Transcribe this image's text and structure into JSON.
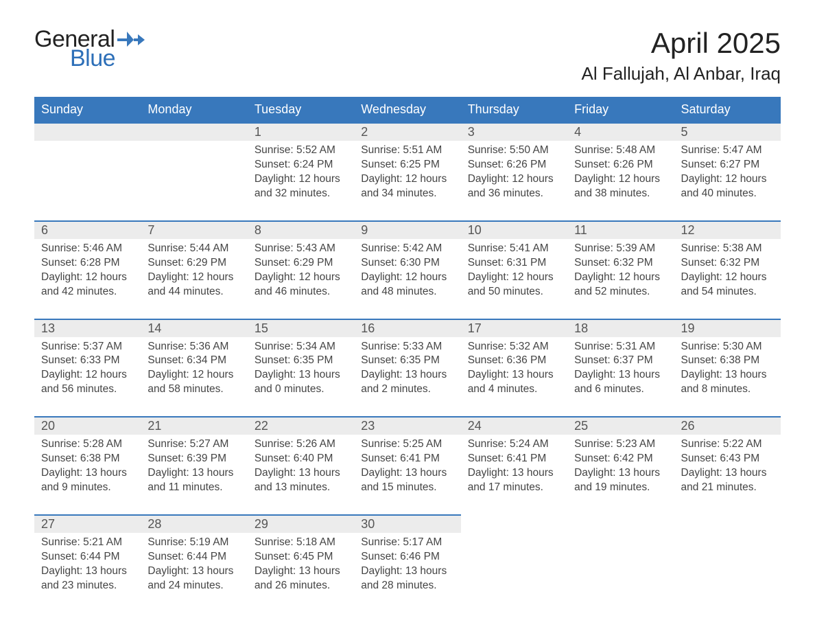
{
  "brand": {
    "word1": "General",
    "word2": "Blue"
  },
  "header": {
    "month_title": "April 2025",
    "location": "Al Fallujah, Al Anbar, Iraq"
  },
  "calendar": {
    "header_bg": "#3878bc",
    "header_fg": "#ffffff",
    "daynum_bg": "#ececec",
    "rule_color": "#3878bc",
    "text_color": "#444444",
    "days": [
      "Sunday",
      "Monday",
      "Tuesday",
      "Wednesday",
      "Thursday",
      "Friday",
      "Saturday"
    ],
    "weeks": [
      [
        null,
        null,
        {
          "n": "1",
          "sunrise": "5:52 AM",
          "sunset": "6:24 PM",
          "daylight": "12 hours and 32 minutes."
        },
        {
          "n": "2",
          "sunrise": "5:51 AM",
          "sunset": "6:25 PM",
          "daylight": "12 hours and 34 minutes."
        },
        {
          "n": "3",
          "sunrise": "5:50 AM",
          "sunset": "6:26 PM",
          "daylight": "12 hours and 36 minutes."
        },
        {
          "n": "4",
          "sunrise": "5:48 AM",
          "sunset": "6:26 PM",
          "daylight": "12 hours and 38 minutes."
        },
        {
          "n": "5",
          "sunrise": "5:47 AM",
          "sunset": "6:27 PM",
          "daylight": "12 hours and 40 minutes."
        }
      ],
      [
        {
          "n": "6",
          "sunrise": "5:46 AM",
          "sunset": "6:28 PM",
          "daylight": "12 hours and 42 minutes."
        },
        {
          "n": "7",
          "sunrise": "5:44 AM",
          "sunset": "6:29 PM",
          "daylight": "12 hours and 44 minutes."
        },
        {
          "n": "8",
          "sunrise": "5:43 AM",
          "sunset": "6:29 PM",
          "daylight": "12 hours and 46 minutes."
        },
        {
          "n": "9",
          "sunrise": "5:42 AM",
          "sunset": "6:30 PM",
          "daylight": "12 hours and 48 minutes."
        },
        {
          "n": "10",
          "sunrise": "5:41 AM",
          "sunset": "6:31 PM",
          "daylight": "12 hours and 50 minutes."
        },
        {
          "n": "11",
          "sunrise": "5:39 AM",
          "sunset": "6:32 PM",
          "daylight": "12 hours and 52 minutes."
        },
        {
          "n": "12",
          "sunrise": "5:38 AM",
          "sunset": "6:32 PM",
          "daylight": "12 hours and 54 minutes."
        }
      ],
      [
        {
          "n": "13",
          "sunrise": "5:37 AM",
          "sunset": "6:33 PM",
          "daylight": "12 hours and 56 minutes."
        },
        {
          "n": "14",
          "sunrise": "5:36 AM",
          "sunset": "6:34 PM",
          "daylight": "12 hours and 58 minutes."
        },
        {
          "n": "15",
          "sunrise": "5:34 AM",
          "sunset": "6:35 PM",
          "daylight": "13 hours and 0 minutes."
        },
        {
          "n": "16",
          "sunrise": "5:33 AM",
          "sunset": "6:35 PM",
          "daylight": "13 hours and 2 minutes."
        },
        {
          "n": "17",
          "sunrise": "5:32 AM",
          "sunset": "6:36 PM",
          "daylight": "13 hours and 4 minutes."
        },
        {
          "n": "18",
          "sunrise": "5:31 AM",
          "sunset": "6:37 PM",
          "daylight": "13 hours and 6 minutes."
        },
        {
          "n": "19",
          "sunrise": "5:30 AM",
          "sunset": "6:38 PM",
          "daylight": "13 hours and 8 minutes."
        }
      ],
      [
        {
          "n": "20",
          "sunrise": "5:28 AM",
          "sunset": "6:38 PM",
          "daylight": "13 hours and 9 minutes."
        },
        {
          "n": "21",
          "sunrise": "5:27 AM",
          "sunset": "6:39 PM",
          "daylight": "13 hours and 11 minutes."
        },
        {
          "n": "22",
          "sunrise": "5:26 AM",
          "sunset": "6:40 PM",
          "daylight": "13 hours and 13 minutes."
        },
        {
          "n": "23",
          "sunrise": "5:25 AM",
          "sunset": "6:41 PM",
          "daylight": "13 hours and 15 minutes."
        },
        {
          "n": "24",
          "sunrise": "5:24 AM",
          "sunset": "6:41 PM",
          "daylight": "13 hours and 17 minutes."
        },
        {
          "n": "25",
          "sunrise": "5:23 AM",
          "sunset": "6:42 PM",
          "daylight": "13 hours and 19 minutes."
        },
        {
          "n": "26",
          "sunrise": "5:22 AM",
          "sunset": "6:43 PM",
          "daylight": "13 hours and 21 minutes."
        }
      ],
      [
        {
          "n": "27",
          "sunrise": "5:21 AM",
          "sunset": "6:44 PM",
          "daylight": "13 hours and 23 minutes."
        },
        {
          "n": "28",
          "sunrise": "5:19 AM",
          "sunset": "6:44 PM",
          "daylight": "13 hours and 24 minutes."
        },
        {
          "n": "29",
          "sunrise": "5:18 AM",
          "sunset": "6:45 PM",
          "daylight": "13 hours and 26 minutes."
        },
        {
          "n": "30",
          "sunrise": "5:17 AM",
          "sunset": "6:46 PM",
          "daylight": "13 hours and 28 minutes."
        },
        null,
        null,
        null
      ]
    ],
    "labels": {
      "sunrise": "Sunrise: ",
      "sunset": "Sunset: ",
      "daylight": "Daylight: "
    }
  }
}
